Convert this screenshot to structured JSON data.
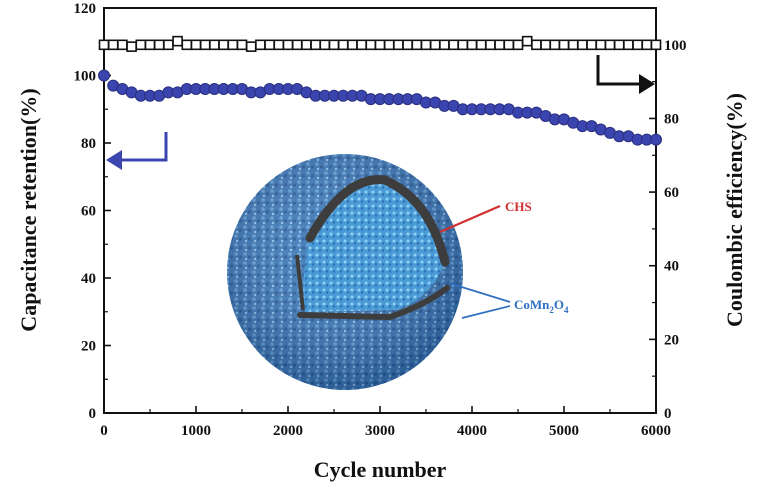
{
  "chart_data": {
    "type": "scatter",
    "title": "",
    "xlabel": "Cycle number",
    "ylabel": "Capacitance retention(%)",
    "y2label": "Coulombic efficiency(%)",
    "xlim": [
      0,
      6000
    ],
    "ylim": [
      0,
      120
    ],
    "y2lim": [
      0,
      110
    ],
    "xticks": [
      "0",
      "1000",
      "2000",
      "3000",
      "4000",
      "5000",
      "6000"
    ],
    "yticks": [
      "0",
      "20",
      "40",
      "60",
      "80",
      "100",
      "120"
    ],
    "y2ticks": [
      "0",
      "20",
      "40",
      "60",
      "80",
      "100"
    ],
    "grid": false,
    "series": [
      {
        "axis": "left",
        "marker": "filled-circle",
        "color": "#3b45b0",
        "x": [
          0,
          100,
          200,
          300,
          400,
          500,
          600,
          700,
          800,
          900,
          1000,
          1100,
          1200,
          1300,
          1400,
          1500,
          1600,
          1700,
          1800,
          1900,
          2000,
          2100,
          2200,
          2300,
          2400,
          2500,
          2600,
          2700,
          2800,
          2900,
          3000,
          3100,
          3200,
          3300,
          3400,
          3500,
          3600,
          3700,
          3800,
          3900,
          4000,
          4100,
          4200,
          4300,
          4400,
          4500,
          4600,
          4700,
          4800,
          4900,
          5000,
          5100,
          5200,
          5300,
          5400,
          5500,
          5600,
          5700,
          5800,
          5900,
          6000
        ],
        "values": [
          100,
          97,
          96,
          95,
          94,
          94,
          94,
          95,
          95,
          96,
          96,
          96,
          96,
          96,
          96,
          96,
          95,
          95,
          96,
          96,
          96,
          96,
          95,
          94,
          94,
          94,
          94,
          94,
          94,
          93,
          93,
          93,
          93,
          93,
          93,
          92,
          92,
          91,
          91,
          90,
          90,
          90,
          90,
          90,
          90,
          89,
          89,
          89,
          88,
          87,
          87,
          86,
          85,
          85,
          84,
          83,
          82,
          82,
          81,
          81,
          81
        ]
      },
      {
        "axis": "right",
        "marker": "open-square",
        "color": "#111111",
        "x": [
          0,
          100,
          200,
          300,
          400,
          500,
          600,
          700,
          800,
          900,
          1000,
          1100,
          1200,
          1300,
          1400,
          1500,
          1600,
          1700,
          1800,
          1900,
          2000,
          2100,
          2200,
          2300,
          2400,
          2500,
          2600,
          2700,
          2800,
          2900,
          3000,
          3100,
          3200,
          3300,
          3400,
          3500,
          3600,
          3700,
          3800,
          3900,
          4000,
          4100,
          4200,
          4300,
          4400,
          4500,
          4600,
          4700,
          4800,
          4900,
          5000,
          5100,
          5200,
          5300,
          5400,
          5500,
          5600,
          5700,
          5800,
          5900,
          6000
        ],
        "values": [
          100,
          100,
          100,
          99.5,
          100,
          100,
          100,
          100,
          101,
          100,
          100,
          100,
          100,
          100,
          100,
          100,
          99.5,
          100,
          100,
          100,
          100,
          100,
          100,
          100,
          100,
          100,
          100,
          100,
          100,
          100,
          100,
          100,
          100,
          100,
          100,
          100,
          100,
          100,
          100,
          100,
          100,
          100,
          100,
          100,
          100,
          100,
          101,
          100,
          100,
          100,
          100,
          100,
          100,
          100,
          100,
          100,
          100,
          100,
          100,
          100,
          100
        ]
      }
    ],
    "annotations": {
      "shell_label": "CHS",
      "core_label": "CoMn",
      "core_sub1": "2",
      "core_mid": "O",
      "core_sub2": "4"
    }
  }
}
